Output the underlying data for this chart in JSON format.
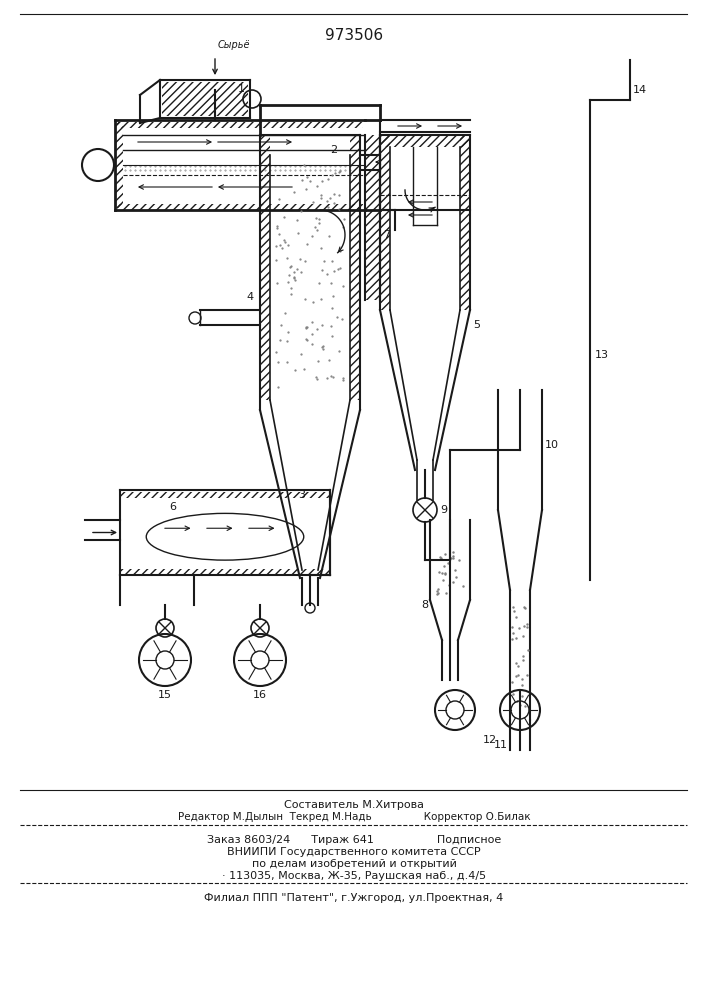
{
  "patent_number": "973506",
  "bg_color": "#ffffff",
  "line_color": "#1a1a1a",
  "fig_width": 7.07,
  "fig_height": 10.0,
  "footer_line1": "Составитель М.Хитрова",
  "footer_line2": "Редактор М.Дылын  Текред М.Надь                Корректор О.Билак",
  "footer_line3": "Заказ 8603/24      Тираж 641                  Подписное",
  "footer_line4": "ВНИИПИ Государственного комитета СССР",
  "footer_line5": "по делам изобретений и открытий",
  "footer_line6": "· 113035, Москва, Ж-35, Раушская наб., д.4/5",
  "footer_line7": "Филиал ППП \"Патент\", г.Ужгород, ул.Проектная, 4",
  "sirye": "Сырьё"
}
